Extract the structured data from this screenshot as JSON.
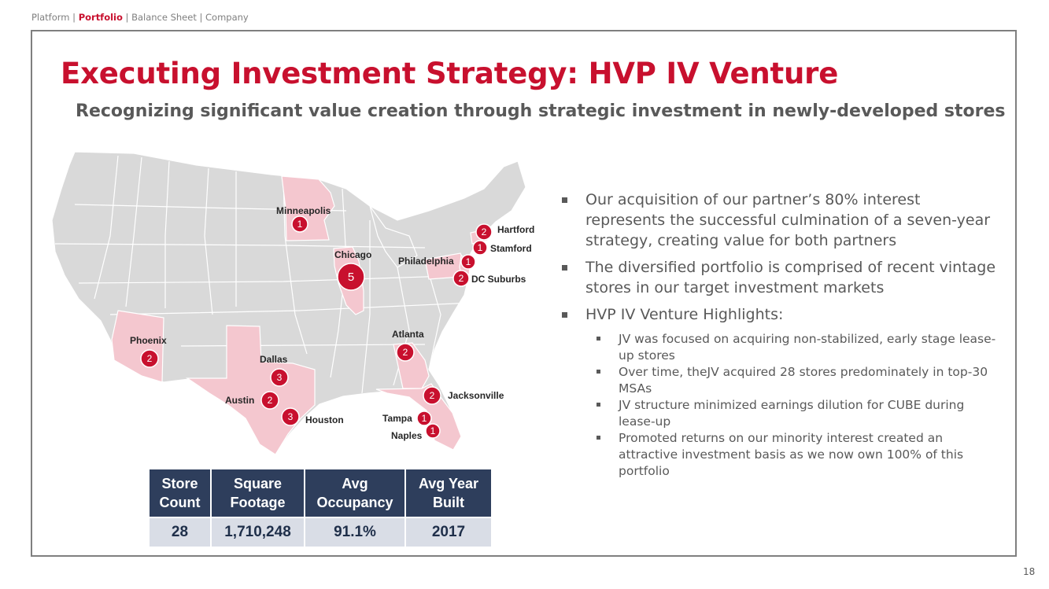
{
  "breadcrumb": {
    "items": [
      "Platform",
      "Portfolio",
      "Balance Sheet",
      "Company"
    ],
    "active_index": 1,
    "separator": "|"
  },
  "title": "Executing Investment Strategy: HVP IV Venture",
  "subtitle": "Recognizing significant value creation through strategic investment in newly-developed stores",
  "colors": {
    "accent": "#c8102e",
    "table_header": "#2e3e5c",
    "table_cell": "#d9dde6",
    "state_base": "#d9d9d9",
    "state_highlight": "#f4c7cf"
  },
  "map": {
    "markers": [
      {
        "city": "Minneapolis",
        "count": "1"
      },
      {
        "city": "Chicago",
        "count": "5"
      },
      {
        "city": "Hartford",
        "count": "2"
      },
      {
        "city": "Stamford",
        "count": "1"
      },
      {
        "city": "Philadelphia",
        "count": "1"
      },
      {
        "city": "DC Suburbs",
        "count": "2"
      },
      {
        "city": "Phoenix",
        "count": "2"
      },
      {
        "city": "Dallas",
        "count": "3"
      },
      {
        "city": "Atlanta",
        "count": "2"
      },
      {
        "city": "Austin",
        "count": "2"
      },
      {
        "city": "Houston",
        "count": "3"
      },
      {
        "city": "Jacksonville",
        "count": "2"
      },
      {
        "city": "Tampa",
        "count": "1"
      },
      {
        "city": "Naples",
        "count": "1"
      }
    ]
  },
  "table": {
    "headers": [
      [
        "Store",
        "Count"
      ],
      [
        "Square",
        "Footage"
      ],
      [
        "Avg",
        "Occupancy"
      ],
      [
        "Avg Year",
        "Built"
      ]
    ],
    "values": [
      "28",
      "1,710,248",
      "91.1%",
      "2017"
    ]
  },
  "bullets": [
    {
      "text": "Our acquisition of our partner’s 80% interest represents the successful culmination of a seven-year strategy, creating value for both partners"
    },
    {
      "text": "The diversified portfolio is comprised of recent vintage stores in our target investment markets"
    },
    {
      "text": "HVP IV Venture Highlights:",
      "sub": [
        "JV was focused on acquiring non-stabilized, early stage lease-up stores",
        "Over time, theJV acquired 28 stores predominately in top-30 MSAs",
        "JV structure minimized earnings dilution for CUBE during lease-up",
        "Promoted returns on our minority interest created an attractive investment basis as we now own 100% of this portfolio"
      ]
    }
  ],
  "page_number": "18"
}
